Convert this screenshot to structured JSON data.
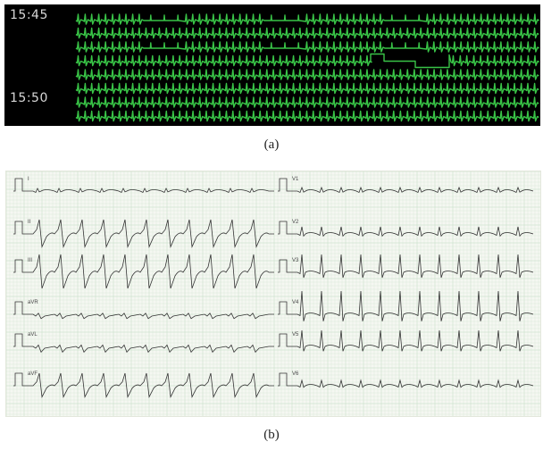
{
  "panel_a": {
    "time_labels": [
      "15:45",
      "15:50"
    ],
    "background": "#000000",
    "trace_color": "#39c447"
  },
  "panel_b": {
    "left_leads": [
      "I",
      "II",
      "III",
      "aVR",
      "aVL",
      "aVF"
    ],
    "right_leads": [
      "V1",
      "V2",
      "V3",
      "V4",
      "V5",
      "V6"
    ],
    "grid_color": "#cfe3cf",
    "trace_color": "#333333"
  },
  "captions": {
    "a": "(a)",
    "b": "(b)"
  }
}
